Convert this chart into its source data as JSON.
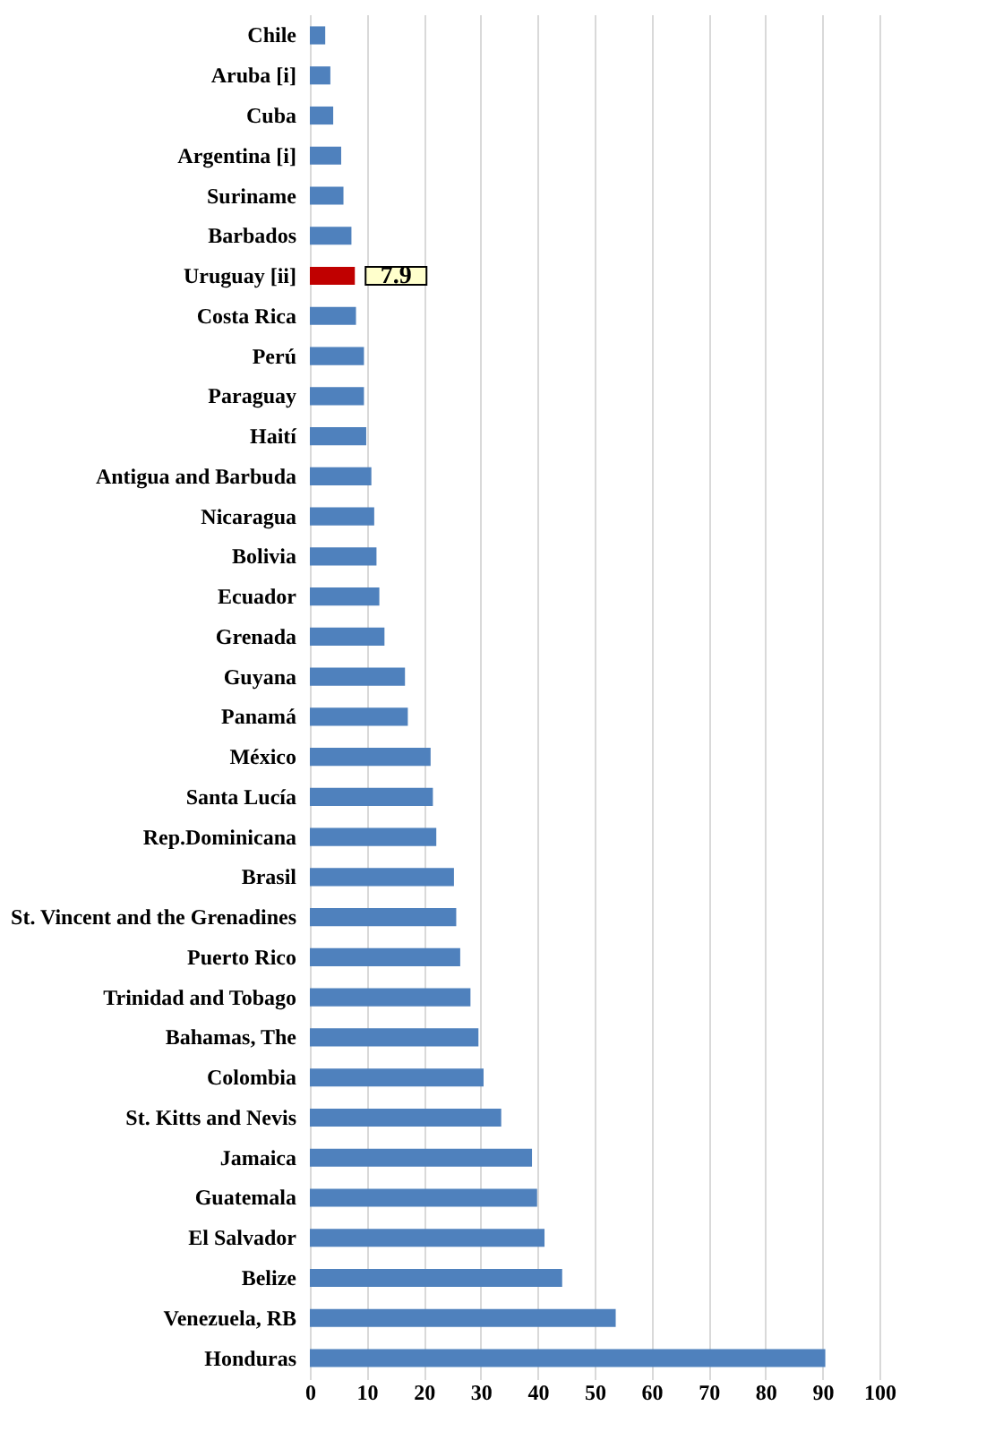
{
  "chart_data": {
    "type": "bar",
    "orientation": "horizontal",
    "categories": [
      "Chile",
      "Aruba [i]",
      "Cuba",
      "Argentina [i]",
      "Suriname",
      "Barbados",
      "Uruguay [ii]",
      "Costa Rica",
      "Perú",
      "Paraguay",
      "Haití",
      "Antigua and Barbuda",
      "Nicaragua",
      "Bolivia",
      "Ecuador",
      "Grenada",
      "Guyana",
      "Panamá",
      "México",
      "Santa Lucía",
      "Rep.Dominicana",
      "Brasil",
      "St. Vincent and the Grenadines",
      "Puerto Rico",
      "Trinidad and Tobago",
      "Bahamas, The",
      "Colombia",
      "St. Kitts and Nevis",
      "Jamaica",
      "Guatemala",
      "El Salvador",
      "Belize",
      "Venezuela, RB",
      "Honduras"
    ],
    "values": [
      2.7,
      3.6,
      4.1,
      5.5,
      5.9,
      7.3,
      7.9,
      8.1,
      9.5,
      9.5,
      9.9,
      10.8,
      11.3,
      11.7,
      12.2,
      13.1,
      16.7,
      17.2,
      21.2,
      21.6,
      22.2,
      25.3,
      25.7,
      26.4,
      28.2,
      29.6,
      30.5,
      33.6,
      39.0,
      39.9,
      41.2,
      44.3,
      53.7,
      90.5
    ],
    "colors": [
      "#4f81bd",
      "#4f81bd",
      "#4f81bd",
      "#4f81bd",
      "#4f81bd",
      "#4f81bd",
      "#c00000",
      "#4f81bd",
      "#4f81bd",
      "#4f81bd",
      "#4f81bd",
      "#4f81bd",
      "#4f81bd",
      "#4f81bd",
      "#4f81bd",
      "#4f81bd",
      "#4f81bd",
      "#4f81bd",
      "#4f81bd",
      "#4f81bd",
      "#4f81bd",
      "#4f81bd",
      "#4f81bd",
      "#4f81bd",
      "#4f81bd",
      "#4f81bd",
      "#4f81bd",
      "#4f81bd",
      "#4f81bd",
      "#4f81bd",
      "#4f81bd",
      "#4f81bd",
      "#4f81bd",
      "#4f81bd"
    ],
    "xlim": [
      0,
      100
    ],
    "xticks": [
      0,
      10,
      20,
      30,
      40,
      50,
      60,
      70,
      80,
      90,
      100
    ],
    "grid": "x",
    "annotations": [
      {
        "text": "7.9",
        "x": 7.9,
        "y": "Uruguay [ii]"
      }
    ]
  }
}
